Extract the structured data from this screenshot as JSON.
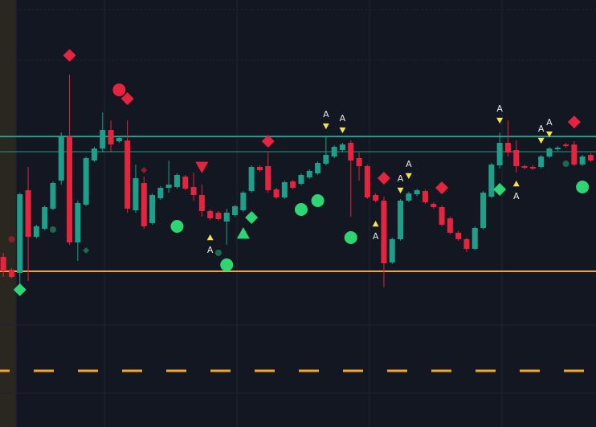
{
  "chart_data": {
    "type": "candlestick",
    "ylim": [
      0,
      532
    ],
    "up_color": "#1f9e89",
    "down_color": "#e5243f",
    "open": [
      212,
      196,
      192,
      295,
      237,
      247,
      272,
      307,
      362,
      230,
      277,
      332,
      347,
      370,
      356,
      357,
      270,
      304,
      254,
      285,
      298,
      299,
      312,
      299,
      289,
      269,
      267,
      256,
      264,
      270,
      294,
      324,
      325,
      296,
      286,
      306,
      303,
      311,
      316,
      328,
      337,
      345,
      354,
      335,
      325,
      289,
      282,
      205,
      234,
      282,
      290,
      294,
      278,
      274,
      260,
      242,
      234,
      222,
      248,
      287,
      326,
      354,
      345,
      325,
      324,
      324,
      337,
      346,
      352,
      352,
      327,
      339
    ],
    "high": [
      217,
      198,
      292,
      324,
      252,
      276,
      306,
      367,
      439,
      282,
      337,
      349,
      392,
      382,
      362,
      382,
      327,
      312,
      291,
      300,
      332,
      316,
      314,
      317,
      302,
      271,
      269,
      272,
      277,
      294,
      326,
      326,
      342,
      298,
      307,
      308,
      316,
      321,
      331,
      362,
      351,
      354,
      357,
      342,
      327,
      291,
      287,
      236,
      284,
      293,
      297,
      296,
      280,
      276,
      262,
      244,
      236,
      250,
      294,
      329,
      367,
      382,
      357,
      327,
      326,
      339,
      349,
      350,
      354,
      356,
      339,
      341
    ],
    "low": [
      187,
      185,
      172,
      182,
      235,
      245,
      270,
      302,
      227,
      207,
      275,
      330,
      342,
      342,
      354,
      267,
      267,
      247,
      252,
      283,
      292,
      297,
      295,
      282,
      262,
      258,
      257,
      227,
      262,
      268,
      292,
      318,
      292,
      284,
      284,
      296,
      301,
      309,
      314,
      326,
      335,
      343,
      262,
      307,
      284,
      280,
      174,
      203,
      232,
      280,
      288,
      278,
      272,
      250,
      240,
      232,
      218,
      220,
      246,
      285,
      322,
      337,
      317,
      321,
      320,
      322,
      335,
      344,
      348,
      325,
      325,
      330
    ],
    "close": [
      194,
      187,
      290,
      237,
      250,
      274,
      304,
      362,
      230,
      279,
      335,
      347,
      370,
      352,
      360,
      272,
      310,
      250,
      289,
      298,
      302,
      314,
      297,
      289,
      269,
      260,
      259,
      267,
      275,
      292,
      324,
      320,
      295,
      286,
      305,
      298,
      314,
      319,
      329,
      339,
      349,
      352,
      332,
      325,
      286,
      282,
      204,
      234,
      282,
      291,
      295,
      280,
      274,
      252,
      242,
      234,
      222,
      248,
      292,
      327,
      354,
      342,
      325,
      323,
      322,
      337,
      347,
      348,
      350,
      327,
      337,
      332
    ],
    "levels": [
      {
        "value": 362,
        "color": "#1f9e89",
        "width": 2,
        "dashed": false
      },
      {
        "value": 343,
        "color": "#1f9e89",
        "width": 1,
        "dashed": false
      },
      {
        "value": 194,
        "color": "#f5a623",
        "width": 2,
        "dashed": false
      },
      {
        "value": 70,
        "color": "#f5a623",
        "width": 3,
        "dashed": true
      }
    ],
    "markers": [
      {
        "shape": "diamond",
        "color": "#e5243f",
        "size": 8,
        "x": [
          8,
          15,
          32,
          46,
          53,
          69
        ],
        "values": [
          463,
          409,
          356,
          310,
          298,
          380
        ]
      },
      {
        "shape": "circle",
        "color": "#e5243f",
        "size": 8,
        "x": [
          14
        ],
        "values": [
          420
        ]
      },
      {
        "shape": "circle",
        "color": "#8c1e2e",
        "size": 4,
        "x": [
          1
        ],
        "values": [
          234
        ]
      },
      {
        "shape": "diamond",
        "color": "#8c1e2e",
        "size": 4,
        "x": [
          17
        ],
        "values": [
          320
        ]
      },
      {
        "shape": "triangle-down",
        "color": "#e5243f",
        "size": 8,
        "x": [
          24
        ],
        "values": [
          324
        ]
      },
      {
        "shape": "circle",
        "color": "#2ed573",
        "size": 8,
        "x": [
          21,
          27,
          36,
          38,
          42,
          70
        ],
        "values": [
          250,
          202,
          271,
          282,
          236,
          299
        ]
      },
      {
        "shape": "diamond",
        "color": "#2ed573",
        "size": 8,
        "x": [
          2,
          30,
          60
        ],
        "values": [
          171,
          261,
          296
        ]
      },
      {
        "shape": "triangle-up",
        "color": "#2ed573",
        "size": 8,
        "x": [
          29
        ],
        "values": [
          241
        ]
      },
      {
        "shape": "circle",
        "color": "#1b6b4a",
        "size": 4,
        "x": [
          6,
          26,
          68
        ],
        "values": [
          246,
          217,
          328
        ]
      },
      {
        "shape": "diamond",
        "color": "#1b6b4a",
        "size": 4,
        "x": [
          10
        ],
        "values": [
          220
        ]
      },
      {
        "shape": "triangle-up",
        "color": "#f7e34b",
        "size": 4,
        "label": "A",
        "label_side": "below",
        "x": [
          25,
          45,
          62
        ],
        "values": [
          236,
          253,
          303
        ]
      },
      {
        "shape": "triangle-down",
        "color": "#f7e34b",
        "size": 4,
        "label": "A",
        "label_side": "above",
        "x": [
          39,
          41,
          48,
          49,
          60,
          65,
          66
        ],
        "values": [
          375,
          370,
          295,
          313,
          382,
          357,
          365
        ]
      }
    ]
  }
}
